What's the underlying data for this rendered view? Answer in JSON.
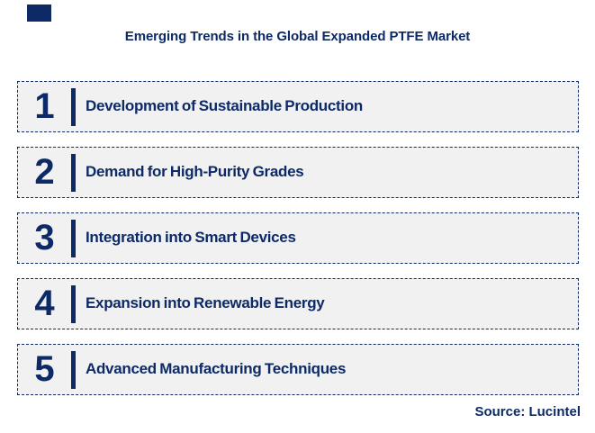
{
  "page": {
    "title": "Emerging Trends in the Global Expanded PTFE Market",
    "source": "Source: Lucintel"
  },
  "colors": {
    "navy": "#0D2A66",
    "row_fill": "#F1F1F2",
    "background": "#FFFFFF"
  },
  "trends": [
    {
      "number": "1",
      "label": "Development of Sustainable Production"
    },
    {
      "number": "2",
      "label": "Demand for High-Purity Grades"
    },
    {
      "number": "3",
      "label": "Integration into Smart Devices"
    },
    {
      "number": "4",
      "label": "Expansion into Renewable Energy"
    },
    {
      "number": "5",
      "label": "Advanced Manufacturing Techniques"
    }
  ]
}
